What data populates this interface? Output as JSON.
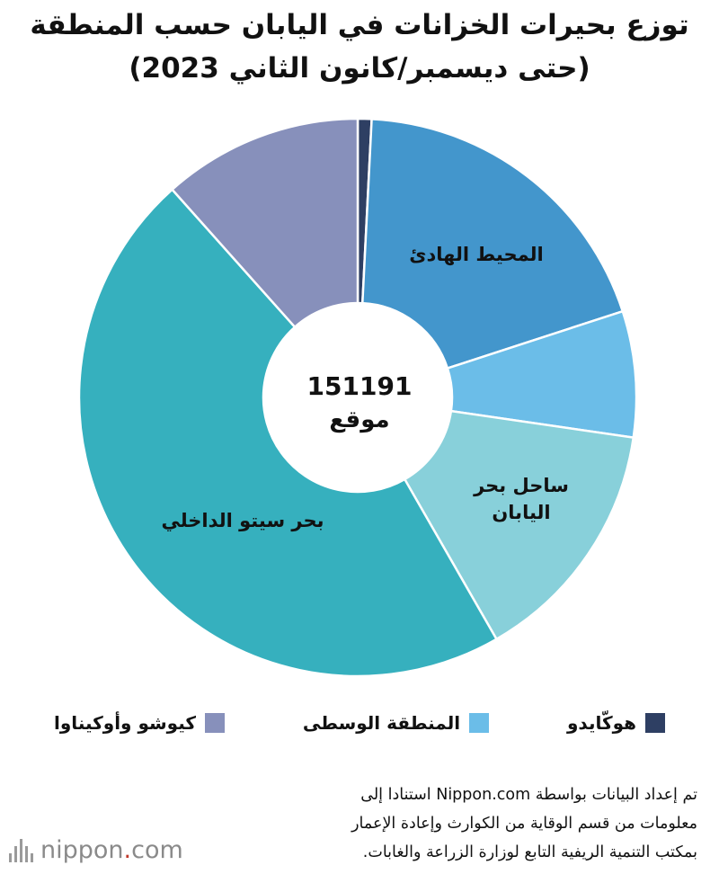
{
  "title": {
    "line1": "توزع بحيرات الخزانات في اليابان حسب المنطقة",
    "line2": "(حتى ديسمبر/كانون الثاني 2023)"
  },
  "chart_data": {
    "type": "pie",
    "donut": true,
    "center_total": "151191",
    "center_unit": "موقع",
    "slices": [
      {
        "name": "هوكّايدو",
        "value": 0.8,
        "color": "#2e3f63",
        "label": ""
      },
      {
        "name": "المحيط الهادئ",
        "value": 19.2,
        "color": "#4396cc",
        "label": "المحيط الهادئ"
      },
      {
        "name": "المنطقة الوسطى",
        "value": 7.3,
        "color": "#6bbde8",
        "label": ""
      },
      {
        "name": "ساحل بحر اليابان",
        "value": 14.4,
        "color": "#88d0da",
        "label": "ساحل بحر\nاليابان"
      },
      {
        "name": "بحر سيتو الداخلي",
        "value": 46.7,
        "color": "#36b0be",
        "label": "بحر سيتو الداخلي"
      },
      {
        "name": "كيوشو وأوكيناوا",
        "value": 11.6,
        "color": "#8790bb",
        "label": ""
      }
    ],
    "legend": [
      {
        "label": "هوكّايدو",
        "color": "#2e3f63"
      },
      {
        "label": "المنطقة الوسطى",
        "color": "#6bbde8"
      },
      {
        "label": "كيوشو وأوكيناوا",
        "color": "#8790bb"
      }
    ],
    "legend_position": "bottom"
  },
  "note": {
    "line1": "تم إعداد البيانات بواسطة Nippon.com استنادا إلى",
    "line2": "معلومات من قسم الوقاية من الكوارث وإعادة الإعمار",
    "line3": "بمكتب التنمية الريفية التابع لوزارة الزراعة والغابات."
  },
  "logo": {
    "text_main": "nippon",
    "text_dot": ".",
    "text_tail": "com"
  }
}
